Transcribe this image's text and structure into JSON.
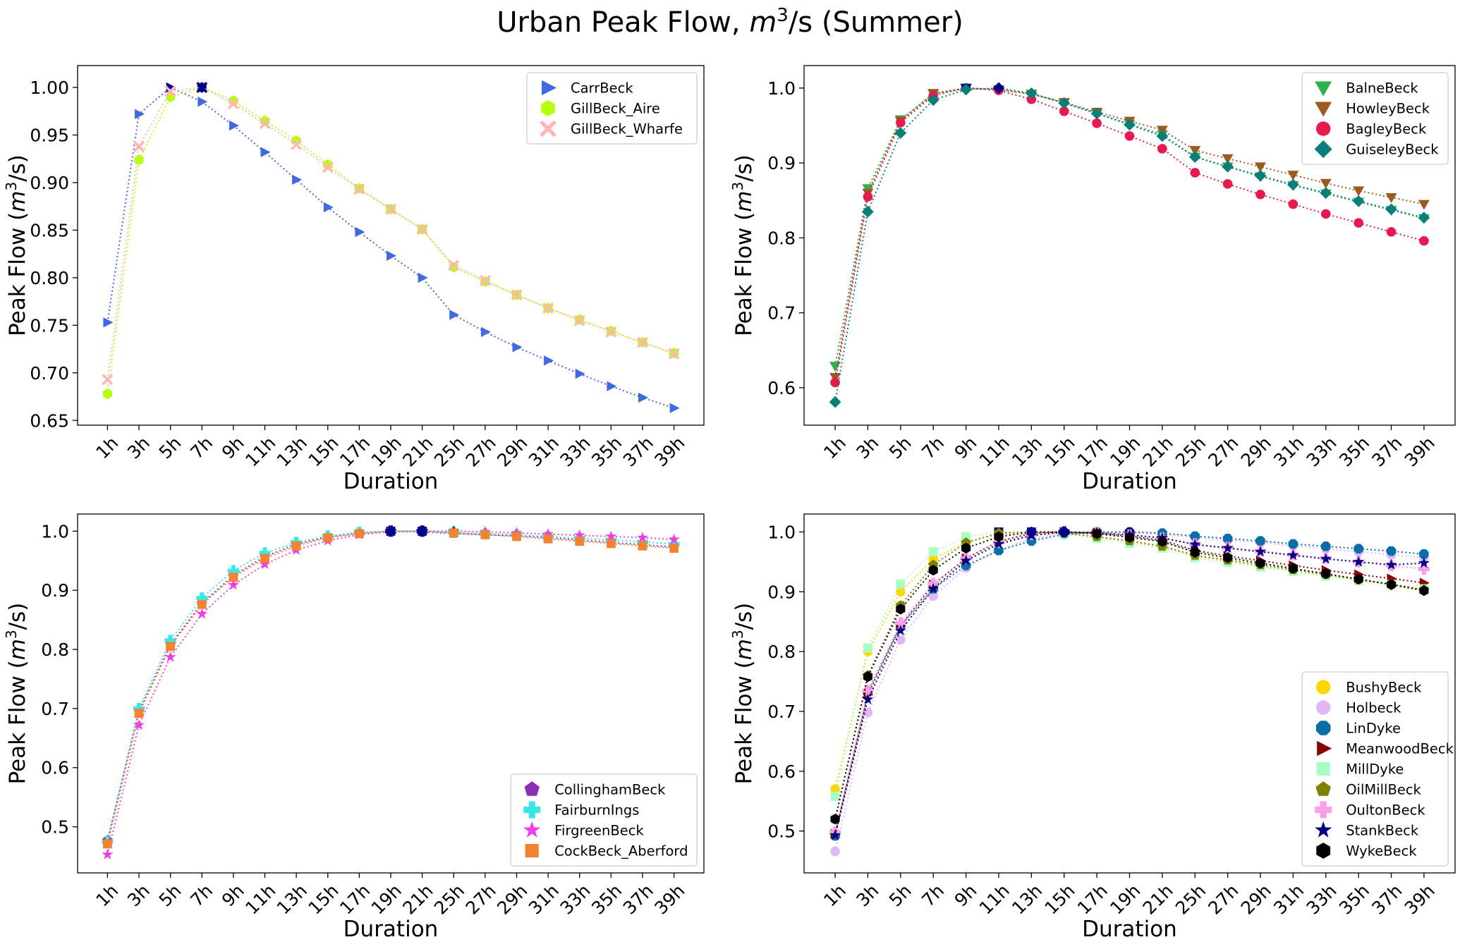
{
  "figure": {
    "title_prefix": "Urban Peak Flow, ",
    "title_unit_base": "m",
    "title_unit_exp": "3",
    "title_suffix": "/s (Summer)"
  },
  "chart_data": [
    {
      "type": "line",
      "marker_style": "dotted-line-with-markers",
      "categories": [
        "1h",
        "3h",
        "5h",
        "7h",
        "9h",
        "11h",
        "13h",
        "15h",
        "17h",
        "19h",
        "21h",
        "25h",
        "27h",
        "29h",
        "31h",
        "33h",
        "35h",
        "37h",
        "39h"
      ],
      "xlabel": "Duration",
      "ylabel_prefix": "Peak Flow (",
      "ylabel_unit_base": "m",
      "ylabel_unit_exp": "3",
      "ylabel_suffix": "/s)",
      "ylim": [
        0.645,
        1.023
      ],
      "yticks": [
        0.65,
        0.7,
        0.75,
        0.8,
        0.85,
        0.9,
        0.95,
        1.0
      ],
      "ytick_labels": [
        "0.65",
        "0.70",
        "0.75",
        "0.80",
        "0.85",
        "0.90",
        "0.95",
        "1.00"
      ],
      "legend_position": "top-right",
      "max_marker_color": "#00008b",
      "series": [
        {
          "name": "CarrBeck",
          "color": "#4169e1",
          "marker": "triangle-right",
          "values": [
            0.753,
            0.972,
            1.0,
            0.985,
            0.96,
            0.932,
            0.903,
            0.874,
            0.848,
            0.823,
            0.8,
            0.761,
            0.743,
            0.727,
            0.713,
            0.699,
            0.686,
            0.674,
            0.663
          ]
        },
        {
          "name": "GillBeck_Aire",
          "color": "#b6ff0d",
          "marker": "hexagon",
          "values": [
            0.678,
            0.924,
            0.99,
            1.0,
            0.986,
            0.965,
            0.944,
            0.919,
            0.894,
            0.872,
            0.851,
            0.811,
            0.796,
            0.782,
            0.768,
            0.756,
            0.744,
            0.732,
            0.721
          ]
        },
        {
          "name": "GillBeck_Wharfe",
          "color": "#ffb6b6",
          "marker": "x",
          "values": [
            0.693,
            0.938,
            0.996,
            1.0,
            0.983,
            0.962,
            0.94,
            0.916,
            0.893,
            0.872,
            0.851,
            0.813,
            0.797,
            0.782,
            0.768,
            0.755,
            0.743,
            0.732,
            0.72
          ]
        }
      ]
    },
    {
      "type": "line",
      "marker_style": "dotted-line-with-markers",
      "categories": [
        "1h",
        "3h",
        "5h",
        "7h",
        "9h",
        "11h",
        "13h",
        "15h",
        "17h",
        "19h",
        "21h",
        "25h",
        "27h",
        "29h",
        "31h",
        "33h",
        "35h",
        "37h",
        "39h"
      ],
      "xlabel": "Duration",
      "ylabel_prefix": "Peak Flow (",
      "ylabel_unit_base": "m",
      "ylabel_unit_exp": "3",
      "ylabel_suffix": "/s)",
      "ylim": [
        0.55,
        1.03
      ],
      "yticks": [
        0.6,
        0.7,
        0.8,
        0.9,
        1.0
      ],
      "ytick_labels": [
        "0.6",
        "0.7",
        "0.8",
        "0.9",
        "1.0"
      ],
      "legend_position": "top-right",
      "max_marker_color": "#00008b",
      "series": [
        {
          "name": "BalneBeck",
          "color": "#2eb34a",
          "marker": "triangle-down",
          "values": [
            0.629,
            0.866,
            0.958,
            0.992,
            1.0,
            0.998,
            0.992,
            0.98,
            0.966,
            0.952,
            0.938,
            0.908,
            0.895,
            0.882,
            0.87,
            0.859,
            0.848,
            0.837,
            0.826
          ]
        },
        {
          "name": "HowleyBeck",
          "color": "#9c5a1f",
          "marker": "triangle-down",
          "values": [
            0.614,
            0.86,
            0.956,
            0.993,
            1.0,
            0.998,
            0.992,
            0.981,
            0.968,
            0.956,
            0.944,
            0.917,
            0.906,
            0.895,
            0.884,
            0.873,
            0.863,
            0.854,
            0.845
          ]
        },
        {
          "name": "BagleyBeck",
          "color": "#e8194f",
          "marker": "circle",
          "values": [
            0.607,
            0.855,
            0.954,
            0.99,
            1.0,
            0.997,
            0.985,
            0.969,
            0.953,
            0.936,
            0.919,
            0.887,
            0.872,
            0.858,
            0.845,
            0.832,
            0.82,
            0.808,
            0.796
          ]
        },
        {
          "name": "GuiseleyBeck",
          "color": "#0a7f7a",
          "marker": "diamond",
          "values": [
            0.581,
            0.835,
            0.94,
            0.984,
            0.998,
            1.0,
            0.993,
            0.98,
            0.966,
            0.951,
            0.936,
            0.908,
            0.895,
            0.883,
            0.871,
            0.86,
            0.849,
            0.838,
            0.827
          ]
        }
      ]
    },
    {
      "type": "line",
      "marker_style": "dotted-line-with-markers",
      "categories": [
        "1h",
        "3h",
        "5h",
        "7h",
        "9h",
        "11h",
        "13h",
        "15h",
        "17h",
        "19h",
        "21h",
        "25h",
        "27h",
        "29h",
        "31h",
        "33h",
        "35h",
        "37h",
        "39h"
      ],
      "xlabel": "Duration",
      "ylabel_prefix": "Peak Flow (",
      "ylabel_unit_base": "m",
      "ylabel_unit_exp": "3",
      "ylabel_suffix": "/s)",
      "ylim": [
        0.422,
        1.029
      ],
      "yticks": [
        0.5,
        0.6,
        0.7,
        0.8,
        0.9,
        1.0
      ],
      "ytick_labels": [
        "0.5",
        "0.6",
        "0.7",
        "0.8",
        "0.9",
        "1.0"
      ],
      "legend_position": "lower-right",
      "max_marker_color": "#00008b",
      "series": [
        {
          "name": "CollinghamBeck",
          "color": "#8a2fb3",
          "marker": "pentagon",
          "values": [
            0.477,
            0.695,
            0.808,
            0.878,
            0.925,
            0.957,
            0.978,
            0.99,
            0.997,
            1.0,
            0.999,
            0.996,
            0.994,
            0.992,
            0.989,
            0.985,
            0.981,
            0.977,
            0.973
          ]
        },
        {
          "name": "FairburnIngs",
          "color": "#3de6e6",
          "marker": "plus",
          "values": [
            0.475,
            0.7,
            0.815,
            0.887,
            0.933,
            0.963,
            0.981,
            0.992,
            0.998,
            1.0,
            1.0,
            0.998,
            0.996,
            0.994,
            0.991,
            0.988,
            0.985,
            0.982,
            0.978
          ]
        },
        {
          "name": "FirgreenBeck",
          "color": "#ee3ee6",
          "marker": "star",
          "values": [
            0.453,
            0.672,
            0.787,
            0.86,
            0.909,
            0.944,
            0.968,
            0.984,
            0.994,
            0.999,
            1.0,
            1.0,
            0.999,
            0.997,
            0.995,
            0.993,
            0.991,
            0.989,
            0.986
          ]
        },
        {
          "name": "CockBeck_Aberford",
          "color": "#f58231",
          "marker": "square",
          "values": [
            0.471,
            0.692,
            0.805,
            0.876,
            0.922,
            0.954,
            0.975,
            0.989,
            0.996,
            1.0,
            1.0,
            0.997,
            0.994,
            0.991,
            0.987,
            0.983,
            0.979,
            0.975,
            0.971
          ]
        }
      ]
    },
    {
      "type": "line",
      "marker_style": "dotted-line-with-markers",
      "categories": [
        "1h",
        "3h",
        "5h",
        "7h",
        "9h",
        "11h",
        "13h",
        "15h",
        "17h",
        "19h",
        "21h",
        "25h",
        "27h",
        "29h",
        "31h",
        "33h",
        "35h",
        "37h",
        "39h"
      ],
      "xlabel": "Duration",
      "ylabel_prefix": "Peak Flow (",
      "ylabel_unit_base": "m",
      "ylabel_unit_exp": "3",
      "ylabel_suffix": "/s)",
      "ylim": [
        0.43,
        1.03
      ],
      "yticks": [
        0.5,
        0.6,
        0.7,
        0.8,
        0.9,
        1.0
      ],
      "ytick_labels": [
        "0.5",
        "0.6",
        "0.7",
        "0.8",
        "0.9",
        "1.0"
      ],
      "legend_position": "lower-right",
      "max_marker_color": "#00008b",
      "series": [
        {
          "name": "BushyBeck",
          "color": "#ffd700",
          "marker": "circle",
          "values": [
            0.57,
            0.8,
            0.9,
            0.955,
            0.983,
            0.997,
            1.0,
            0.998,
            0.992,
            0.984,
            0.976,
            0.96,
            0.951,
            0.943,
            0.935,
            0.927,
            0.919,
            0.911,
            0.903
          ]
        },
        {
          "name": "Holbeck",
          "color": "#e0b6f5",
          "marker": "circle",
          "values": [
            0.466,
            0.698,
            0.82,
            0.893,
            0.94,
            0.97,
            0.989,
            0.998,
            1.0,
            0.999,
            0.996,
            0.991,
            0.986,
            0.982,
            0.977,
            0.972,
            0.967,
            0.962,
            0.957
          ]
        },
        {
          "name": "LinDyke",
          "color": "#0a6ea8",
          "marker": "octagon",
          "values": [
            0.492,
            0.733,
            0.843,
            0.905,
            0.944,
            0.969,
            0.985,
            0.996,
            1.0,
            1.0,
            0.998,
            0.993,
            0.989,
            0.985,
            0.98,
            0.976,
            0.972,
            0.968,
            0.963
          ]
        },
        {
          "name": "MeanwoodBeck",
          "color": "#8b0000",
          "marker": "triangle-right",
          "values": [
            0.495,
            0.728,
            0.843,
            0.912,
            0.956,
            0.984,
            0.998,
            1.0,
            0.998,
            0.993,
            0.986,
            0.969,
            0.96,
            0.952,
            0.944,
            0.936,
            0.929,
            0.922,
            0.915
          ]
        },
        {
          "name": "MillDyke",
          "color": "#a8ffc4",
          "marker": "square",
          "values": [
            0.558,
            0.806,
            0.913,
            0.967,
            0.992,
            1.0,
            1.0,
            0.996,
            0.989,
            0.981,
            0.973,
            0.957,
            0.949,
            0.941,
            0.934,
            0.926,
            0.919,
            0.912,
            0.905
          ]
        },
        {
          "name": "OilMillBeck",
          "color": "#808000",
          "marker": "pentagon",
          "values": [
            0.52,
            0.76,
            0.877,
            0.945,
            0.982,
            0.998,
            1.0,
            0.998,
            0.992,
            0.985,
            0.976,
            0.961,
            0.953,
            0.945,
            0.937,
            0.929,
            0.921,
            0.913,
            0.903
          ]
        },
        {
          "name": "OultonBeck",
          "color": "#ff9ee8",
          "marker": "plus",
          "values": [
            0.498,
            0.735,
            0.848,
            0.914,
            0.956,
            0.983,
            0.996,
            1.0,
            0.999,
            0.995,
            0.99,
            0.98,
            0.974,
            0.968,
            0.962,
            0.956,
            0.95,
            0.944,
            0.938
          ]
        },
        {
          "name": "StankBeck",
          "color": "#000080",
          "marker": "star",
          "values": [
            0.493,
            0.72,
            0.835,
            0.905,
            0.952,
            0.98,
            0.994,
            1.0,
            0.999,
            0.995,
            0.99,
            0.979,
            0.973,
            0.967,
            0.961,
            0.955,
            0.95,
            0.945,
            0.948
          ]
        },
        {
          "name": "WykeBeck",
          "color": "#000000",
          "marker": "hexagon",
          "values": [
            0.52,
            0.758,
            0.871,
            0.936,
            0.973,
            0.992,
            1.0,
            1.0,
            0.997,
            0.991,
            0.984,
            0.966,
            0.957,
            0.948,
            0.939,
            0.93,
            0.921,
            0.912,
            0.902
          ]
        }
      ]
    }
  ]
}
